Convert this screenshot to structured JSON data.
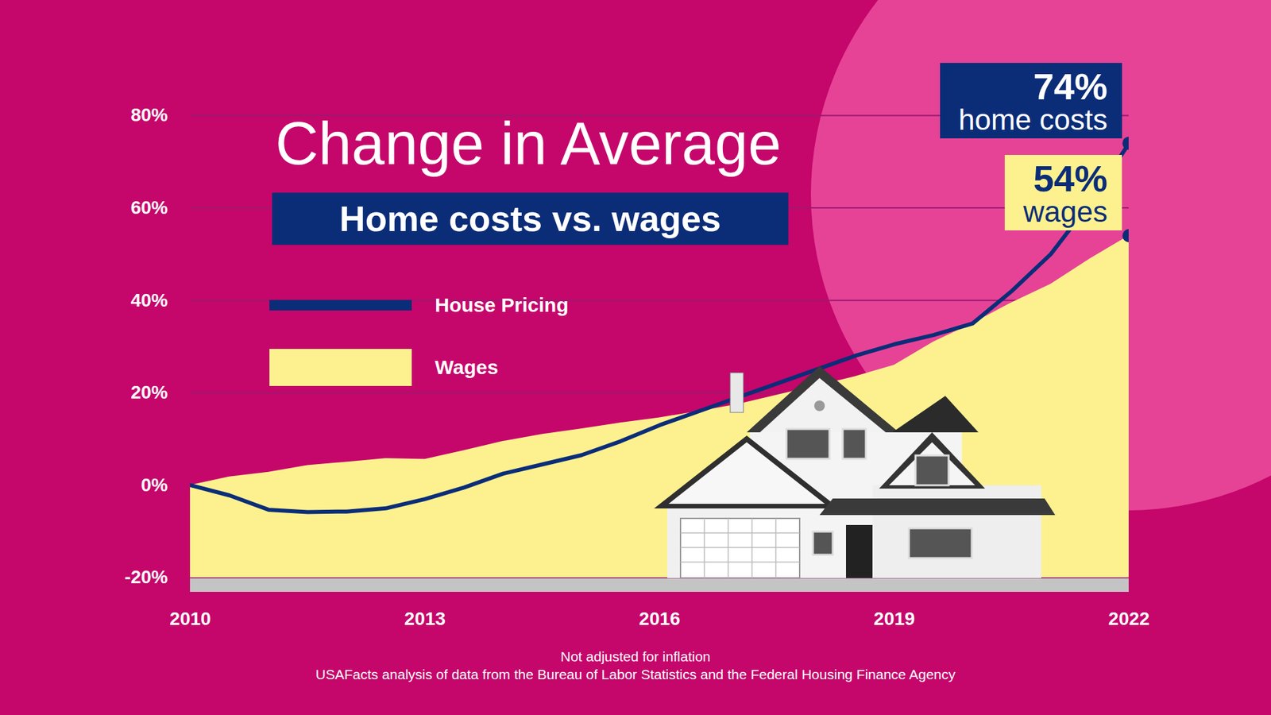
{
  "chart_data": {
    "type": "line",
    "title": "Change in Average",
    "subtitle": "Home costs vs. wages",
    "x": [
      2010,
      2010.5,
      2011,
      2011.5,
      2012,
      2012.5,
      2013,
      2013.5,
      2014,
      2014.5,
      2015,
      2015.5,
      2016,
      2016.5,
      2017,
      2017.5,
      2018,
      2018.5,
      2019,
      2019.5,
      2020,
      2020.5,
      2021,
      2021.5,
      2022
    ],
    "series": [
      {
        "name": "House Pricing",
        "type": "line",
        "color": "#0B2D78",
        "values": [
          0,
          -2.2,
          -5.3,
          -5.8,
          -5.7,
          -5,
          -3,
          -0.5,
          2.5,
          4.5,
          6.5,
          9.5,
          13,
          16,
          19,
          22,
          25,
          28,
          30.5,
          32.5,
          35,
          42,
          50,
          61,
          74
        ]
      },
      {
        "name": "Wages",
        "type": "area",
        "color": "#FDF18F",
        "values": [
          0,
          1.8,
          2.8,
          4.3,
          5,
          5.8,
          5.6,
          7.5,
          9.5,
          11,
          12.2,
          13.5,
          14.6,
          16,
          17.5,
          19.5,
          21.5,
          23.5,
          26,
          31,
          35,
          39.5,
          43.5,
          49,
          54
        ]
      }
    ],
    "xlim": [
      2010,
      2022
    ],
    "xticks": [
      2010,
      2013,
      2016,
      2019,
      2022
    ],
    "ylim": [
      -20,
      80
    ],
    "yticks": [
      {
        "value": -20,
        "label": "-20%"
      },
      {
        "value": 0,
        "label": "0%"
      },
      {
        "value": 20,
        "label": "20%"
      },
      {
        "value": 40,
        "label": "40%"
      },
      {
        "value": 60,
        "label": "60%"
      },
      {
        "value": 80,
        "label": "80%"
      }
    ],
    "grid": true,
    "legend": "upper left",
    "annotations": [
      {
        "series": "House Pricing",
        "x": 2022,
        "y": 74,
        "label": "74%",
        "text": "home costs"
      },
      {
        "series": "Wages",
        "x": 2022,
        "y": 54,
        "label": "54%",
        "text": "wages"
      }
    ],
    "notes": [
      "Not adjusted for inflation",
      "USAFacts analysis of data from the Bureau of Labor Statistics and the Federal Housing Finance Agency"
    ]
  }
}
